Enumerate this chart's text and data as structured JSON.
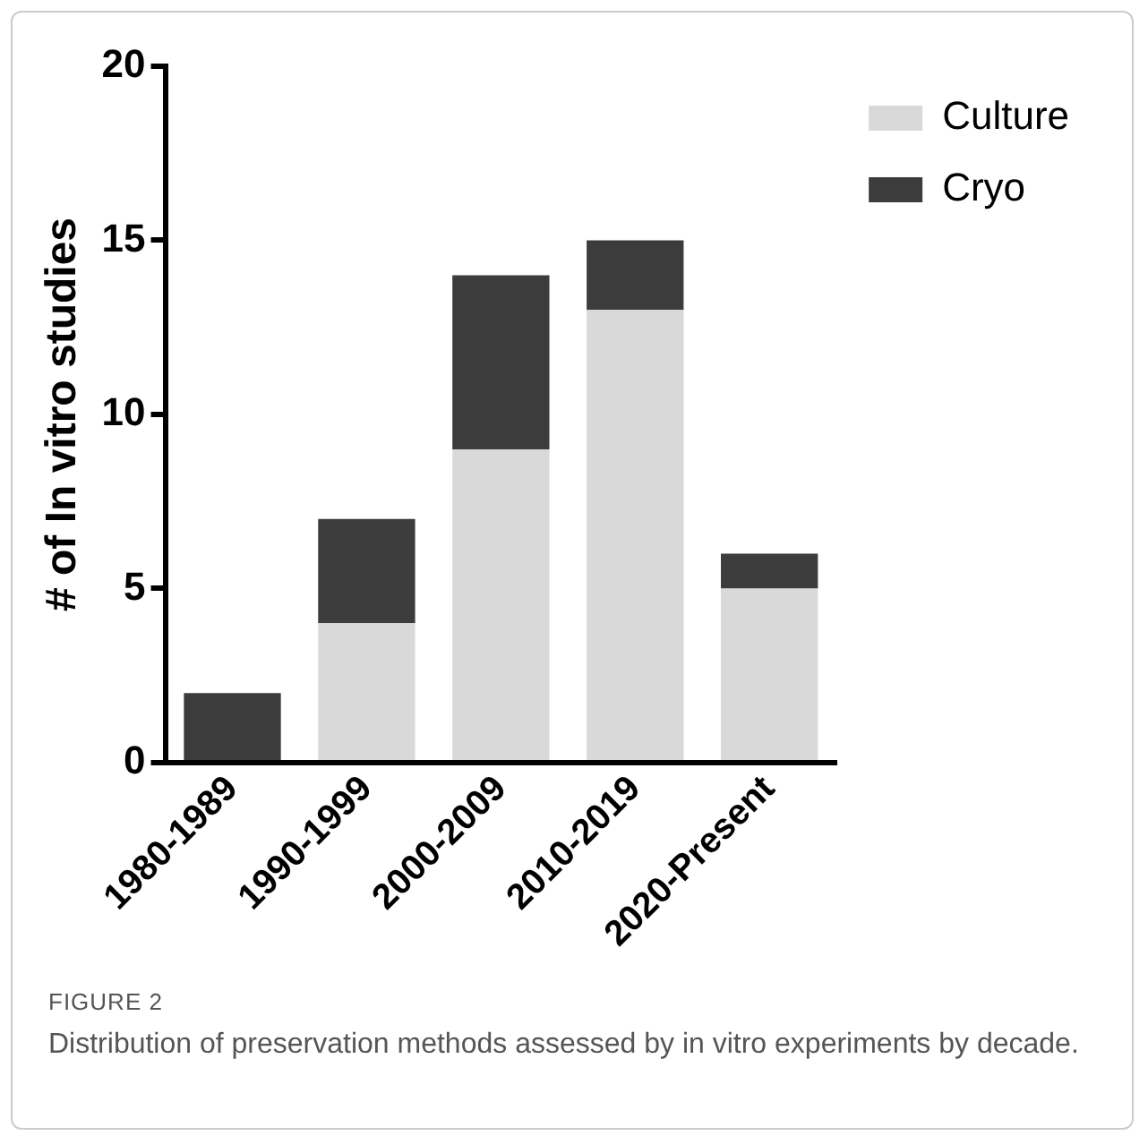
{
  "chart_data": {
    "type": "bar",
    "stacked": true,
    "ylabel": "# of In vitro studies",
    "categories": [
      "1980-1989",
      "1990-1999",
      "2000-2009",
      "2010-2019",
      "2020-Present"
    ],
    "series": [
      {
        "name": "Culture",
        "color": "#d9d9d9",
        "values": [
          0,
          4,
          9,
          13,
          5
        ]
      },
      {
        "name": "Cryo",
        "color": "#3c3c3c",
        "values": [
          2,
          3,
          5,
          2,
          1
        ]
      }
    ],
    "ylim": [
      0,
      20
    ],
    "yticks": [
      0,
      5,
      10,
      15,
      20
    ],
    "grid": false,
    "legend": "top right",
    "annotations": [
      "FIGURE 2",
      "Distribution of preservation methods assessed by in vitro experiments by decade."
    ]
  }
}
